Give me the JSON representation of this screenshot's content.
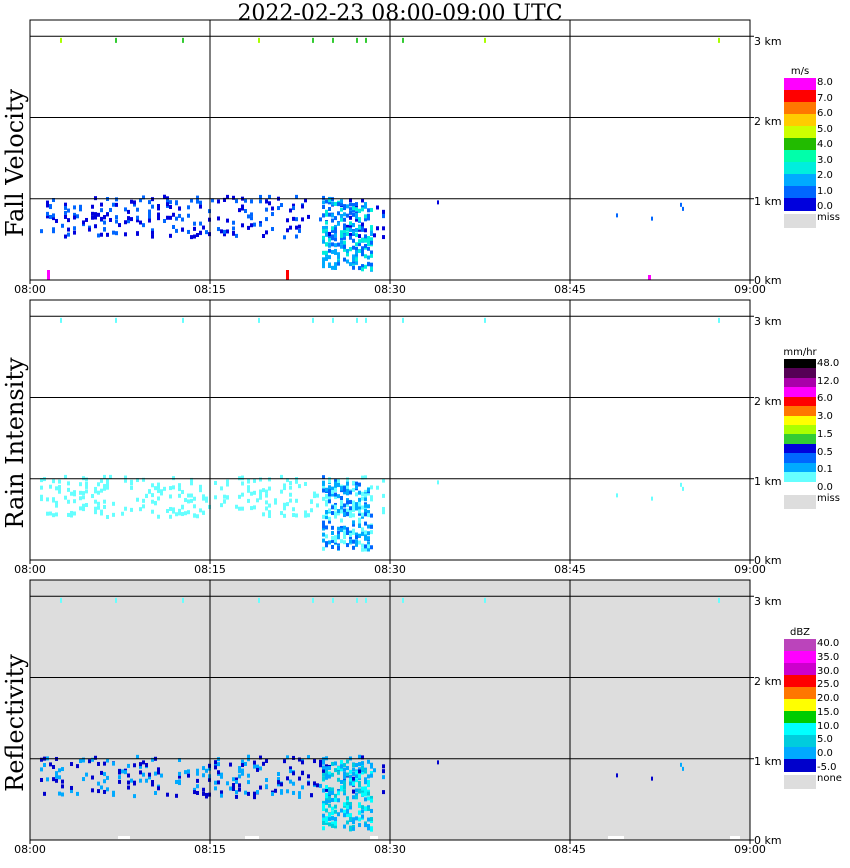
{
  "title": "2022-02-23   08:00-09:00 UTC",
  "x_ticks": [
    "08:00",
    "08:15",
    "08:30",
    "08:45",
    "09:00"
  ],
  "y_ticks": [
    "0 km",
    "1 km",
    "2 km",
    "3 km"
  ],
  "chart_data": [
    {
      "type": "heatmap",
      "title": "Fall Velocity",
      "ylabel": "Fall Velocity",
      "xlim": [
        "08:00",
        "09:00"
      ],
      "ylim_km": [
        0,
        3.2
      ],
      "grid": true,
      "background": "#ffffff",
      "colorbar": {
        "unit": "m/s",
        "labels": [
          "8.0",
          "7.0",
          "6.0",
          "5.0",
          "4.0",
          "3.0",
          "2.0",
          "1.0",
          "0.0"
        ],
        "colors": [
          "#ff00ff",
          "#ff0000",
          "#ff7700",
          "#ffcc00",
          "#ccff00",
          "#22bb00",
          "#00ffaa",
          "#00eedd",
          "#00aaff",
          "#0066ff",
          "#0000dd"
        ],
        "missing_label": "miss",
        "missing_color": "#dddddd"
      }
    },
    {
      "type": "heatmap",
      "title": "Rain Intensity",
      "ylabel": "Rain Intensity",
      "xlim": [
        "08:00",
        "09:00"
      ],
      "ylim_km": [
        0,
        3.2
      ],
      "grid": true,
      "background": "#ffffff",
      "colorbar": {
        "unit": "mm/hr",
        "labels": [
          "48.0",
          "12.0",
          "6.0",
          "3.0",
          "1.5",
          "0.5",
          "0.1",
          "0.0"
        ],
        "colors": [
          "#000000",
          "#550055",
          "#aa00aa",
          "#ff00ff",
          "#ff0000",
          "#ff7700",
          "#ffff00",
          "#aaff00",
          "#33cc33",
          "#0000dd",
          "#0066ff",
          "#00aaff",
          "#66ffff",
          "#ffffff"
        ],
        "missing_label": "miss",
        "missing_color": "#dddddd"
      }
    },
    {
      "type": "heatmap",
      "title": "Reflectivity",
      "ylabel": "Reflectivity",
      "xlim": [
        "08:00",
        "09:00"
      ],
      "ylim_km": [
        0,
        3.2
      ],
      "grid": true,
      "background": "#dddddd",
      "colorbar": {
        "unit": "dBZ",
        "labels": [
          "40.0",
          "35.0",
          "30.0",
          "25.0",
          "20.0",
          "15.0",
          "10.0",
          "5.0",
          "0.0",
          "-5.0"
        ],
        "colors": [
          "#bb44bb",
          "#ff00ff",
          "#cc00cc",
          "#ff0000",
          "#ff7700",
          "#ffff00",
          "#00cc00",
          "#00ffff",
          "#00ccdd",
          "#00aaff",
          "#0000cc"
        ],
        "missing_label": "none",
        "missing_color": "#dddddd"
      }
    }
  ]
}
